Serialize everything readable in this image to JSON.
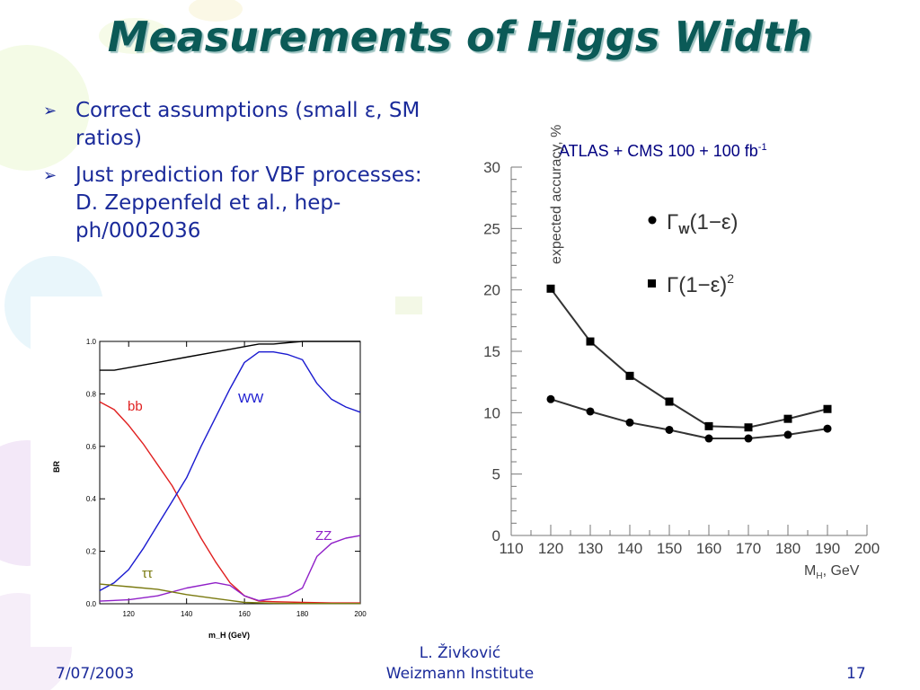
{
  "slide": {
    "title": "Measurements of Higgs Width",
    "bullets": [
      "Correct assumptions (small ε, SM ratios)",
      "Just prediction for VBF processes: D. Zeppenfeld et al., hep-ph/0002036"
    ],
    "right_caption": "ATLAS + CMS 100 + 100 fb",
    "right_caption_sup": "-1",
    "footer_date": "7/07/2003",
    "footer_author_line1": "L. Živković",
    "footer_author_line2": "Weizmann Institute",
    "footer_page": "17"
  },
  "colors": {
    "title": "#0b5a57",
    "text": "#1a2a9a",
    "bb": "#e02020",
    "ww": "#1a1ad0",
    "zz": "#9020c8",
    "tautau": "#7a7a10"
  },
  "chart_data": [
    {
      "type": "line",
      "xlabel": "m_H (GeV)",
      "ylabel": "BR",
      "xlim": [
        110,
        200
      ],
      "ylim": [
        0,
        1
      ],
      "xticks": [
        "120",
        "140",
        "160",
        "180",
        "200"
      ],
      "yticks": [
        "0.0",
        "0.2",
        "0.4",
        "0.6",
        "0.8",
        "1.0"
      ],
      "series": [
        {
          "name": "bb",
          "color": "#e02020",
          "x": [
            110,
            115,
            120,
            125,
            130,
            135,
            140,
            145,
            150,
            155,
            160,
            165,
            170,
            180,
            190,
            200
          ],
          "y": [
            0.77,
            0.74,
            0.68,
            0.61,
            0.53,
            0.45,
            0.35,
            0.25,
            0.16,
            0.08,
            0.03,
            0.01,
            0.008,
            0.005,
            0.003,
            0.003
          ]
        },
        {
          "name": "WW",
          "color": "#1a1ad0",
          "x": [
            110,
            115,
            120,
            125,
            130,
            135,
            140,
            145,
            150,
            155,
            160,
            165,
            170,
            175,
            180,
            185,
            190,
            195,
            200
          ],
          "y": [
            0.05,
            0.08,
            0.13,
            0.21,
            0.3,
            0.39,
            0.48,
            0.6,
            0.71,
            0.82,
            0.92,
            0.96,
            0.96,
            0.95,
            0.93,
            0.84,
            0.78,
            0.75,
            0.73
          ]
        },
        {
          "name": "ZZ",
          "color": "#9020c8",
          "x": [
            110,
            120,
            130,
            140,
            150,
            155,
            160,
            165,
            170,
            175,
            180,
            185,
            190,
            195,
            200
          ],
          "y": [
            0.01,
            0.015,
            0.03,
            0.06,
            0.08,
            0.07,
            0.03,
            0.012,
            0.02,
            0.03,
            0.06,
            0.18,
            0.23,
            0.25,
            0.26
          ]
        },
        {
          "name": "ττ",
          "color": "#7a7a10",
          "x": [
            110,
            120,
            130,
            140,
            150,
            160,
            170,
            180,
            190,
            200
          ],
          "y": [
            0.075,
            0.065,
            0.055,
            0.035,
            0.02,
            0.005,
            0.002,
            0.001,
            0.001,
            0.001
          ]
        },
        {
          "name": "",
          "color": "#000000",
          "x": [
            110,
            115,
            120,
            130,
            140,
            150,
            155,
            160,
            165,
            170,
            180,
            190,
            200
          ],
          "y": [
            0.89,
            0.89,
            0.9,
            0.92,
            0.94,
            0.96,
            0.97,
            0.98,
            0.99,
            0.99,
            1.0,
            1.0,
            1.0
          ]
        }
      ],
      "labels": [
        "bb",
        "WW",
        "ZZ",
        "ττ"
      ]
    },
    {
      "type": "line",
      "title": "ATLAS + CMS 100 + 100 fb-1",
      "xlabel": "M_H, GeV",
      "ylabel": "expected accuracy, %",
      "xlim": [
        110,
        200
      ],
      "ylim": [
        0,
        30
      ],
      "xticks": [
        "110",
        "120",
        "130",
        "140",
        "150",
        "160",
        "170",
        "180",
        "190",
        "200"
      ],
      "yticks": [
        "0",
        "5",
        "10",
        "15",
        "20",
        "25",
        "30"
      ],
      "x": [
        120,
        130,
        140,
        150,
        160,
        170,
        180,
        190
      ],
      "series": [
        {
          "name": "Γ_W(1−ε)",
          "marker": "circle",
          "values": [
            11.1,
            10.1,
            9.2,
            8.6,
            7.9,
            7.9,
            8.2,
            8.7
          ]
        },
        {
          "name": "Γ(1−ε)²",
          "marker": "square",
          "values": [
            20.1,
            15.8,
            13.0,
            10.9,
            8.9,
            8.8,
            9.5,
            10.3
          ]
        }
      ]
    }
  ]
}
